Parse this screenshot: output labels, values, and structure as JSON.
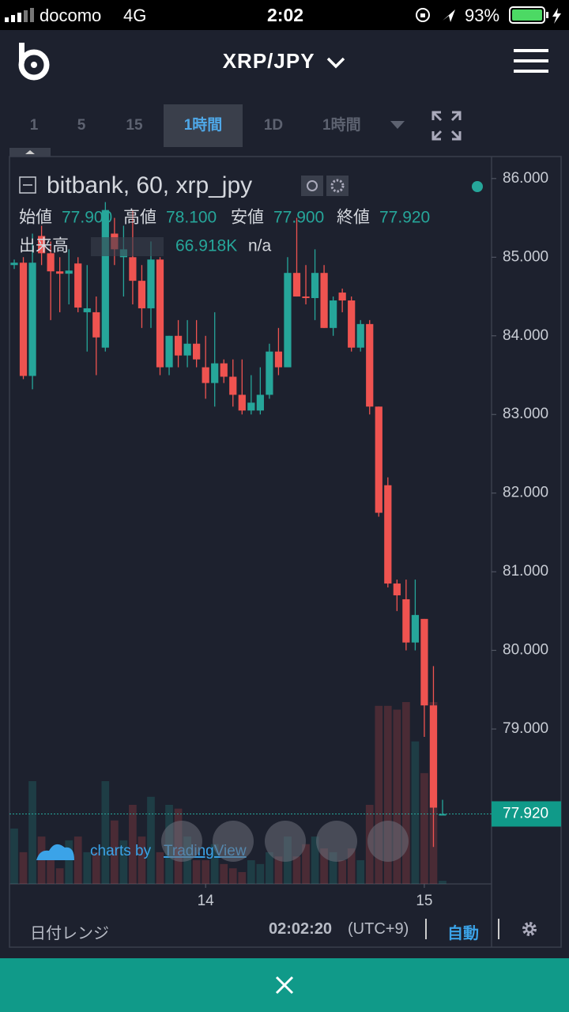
{
  "status_bar": {
    "carrier": "docomo",
    "network": "4G",
    "time": "2:02",
    "battery": "93%"
  },
  "header": {
    "title": "XRP/JPY"
  },
  "toolbar": {
    "intervals": [
      "1",
      "5",
      "15",
      "1時間",
      "1D"
    ],
    "selected": 3,
    "dropdown": "1時間"
  },
  "chart_data": {
    "type": "candlestick",
    "title": "bitbank, 60, xrp_jpy",
    "ohlc_legend": [
      {
        "name": "始値",
        "value": "77.900"
      },
      {
        "name": "高値",
        "value": "78.100"
      },
      {
        "name": "安値",
        "value": "77.900"
      },
      {
        "name": "終値",
        "value": "77.920"
      }
    ],
    "volume_legend": {
      "name": "出来高",
      "value": 66.918,
      "label": "66.918K",
      "extra": "n/a"
    },
    "categories": [
      null,
      null,
      null,
      null,
      null,
      null,
      null,
      null,
      null,
      null,
      null,
      null,
      null,
      null,
      null,
      null,
      null,
      null,
      null,
      null,
      null,
      "14",
      null,
      null,
      null,
      null,
      null,
      null,
      null,
      null,
      null,
      null,
      null,
      null,
      null,
      null,
      null,
      null,
      null,
      null,
      null,
      null,
      null,
      null,
      null,
      "15",
      null,
      null
    ],
    "open": [
      84.9,
      84.93,
      83.49,
      85.27,
      85.05,
      84.82,
      84.79,
      84.92,
      84.3,
      84.3,
      83.85,
      85.3,
      85.0,
      85.0,
      84.7,
      84.35,
      84.97,
      83.6,
      84.0,
      83.75,
      83.9,
      83.6,
      83.4,
      83.65,
      83.48,
      83.25,
      83.05,
      83.05,
      83.25,
      83.8,
      83.6,
      84.8,
      84.5,
      84.48,
      84.8,
      84.1,
      84.55,
      84.45,
      83.85,
      84.15,
      83.1,
      82.1,
      80.85,
      80.65,
      80.1,
      80.4,
      79.3,
      77.9
    ],
    "high": [
      84.97,
      85.0,
      85.3,
      85.4,
      85.2,
      85.0,
      85.1,
      85.0,
      84.9,
      84.5,
      85.7,
      85.5,
      85.4,
      85.6,
      84.9,
      85.2,
      85.0,
      84.0,
      84.2,
      84.2,
      84.2,
      84.0,
      84.3,
      83.7,
      83.7,
      83.7,
      83.5,
      83.6,
      83.9,
      84.1,
      85.0,
      85.5,
      84.9,
      85.1,
      84.9,
      84.5,
      84.6,
      84.5,
      84.2,
      84.2,
      83.1,
      82.2,
      80.9,
      80.9,
      80.9,
      80.4,
      79.8,
      78.1
    ],
    "low": [
      84.85,
      83.45,
      83.32,
      84.9,
      84.2,
      84.3,
      84.4,
      84.3,
      83.8,
      83.5,
      83.8,
      84.9,
      84.5,
      84.4,
      84.1,
      84.1,
      83.5,
      83.5,
      83.6,
      83.6,
      83.6,
      83.2,
      83.1,
      83.4,
      83.1,
      83.0,
      83.0,
      83.0,
      83.2,
      83.5,
      83.6,
      84.5,
      84.4,
      84.2,
      84.1,
      84.0,
      84.3,
      83.8,
      83.8,
      83.0,
      81.7,
      80.8,
      80.5,
      80.0,
      80.0,
      78.9,
      77.5,
      77.9
    ],
    "close": [
      84.93,
      83.49,
      84.93,
      85.05,
      84.82,
      84.79,
      84.83,
      84.36,
      84.35,
      83.98,
      85.6,
      85.1,
      85.1,
      84.7,
      84.35,
      84.97,
      83.6,
      84.0,
      83.75,
      83.9,
      83.7,
      83.4,
      83.65,
      83.48,
      83.25,
      83.05,
      83.15,
      83.25,
      83.8,
      83.6,
      84.8,
      84.5,
      84.48,
      84.8,
      84.1,
      84.45,
      84.45,
      83.85,
      84.15,
      83.1,
      81.75,
      80.85,
      80.7,
      80.1,
      80.45,
      79.3,
      78.0,
      77.92
    ],
    "volumes": [
      1170,
      670,
      2170,
      1000,
      500,
      330,
      920,
      1000,
      670,
      670,
      2170,
      1340,
      920,
      1670,
      1000,
      1840,
      670,
      1670,
      1590,
      1000,
      500,
      500,
      840,
      420,
      330,
      250,
      500,
      420,
      670,
      580,
      1000,
      580,
      840,
      1000,
      750,
      670,
      500,
      750,
      500,
      1670,
      3760,
      3760,
      3680,
      3840,
      3010,
      2340,
      3840,
      66.918
    ],
    "up_color": "#26a69a",
    "down_color": "#ef5350",
    "ylim": [
      77.03,
      86.28
    ],
    "yticks": [
      {
        "value": 86,
        "label": "86.000"
      },
      {
        "value": 85,
        "label": "85.000"
      },
      {
        "value": 84,
        "label": "84.000"
      },
      {
        "value": 83,
        "label": "83.000"
      },
      {
        "value": 82,
        "label": "82.000"
      },
      {
        "value": 81,
        "label": "81.000"
      },
      {
        "value": 80,
        "label": "80.000"
      },
      {
        "value": 79,
        "label": "79.000"
      }
    ],
    "last_price": {
      "value": 77.92,
      "label": "77.920"
    },
    "watermark": {
      "prefix": "charts by",
      "brand": "TradingView"
    }
  },
  "footer": {
    "date_range": "日付レンジ",
    "clock": "02:02:20",
    "timezone": "(UTC+9)",
    "auto": "自動"
  }
}
